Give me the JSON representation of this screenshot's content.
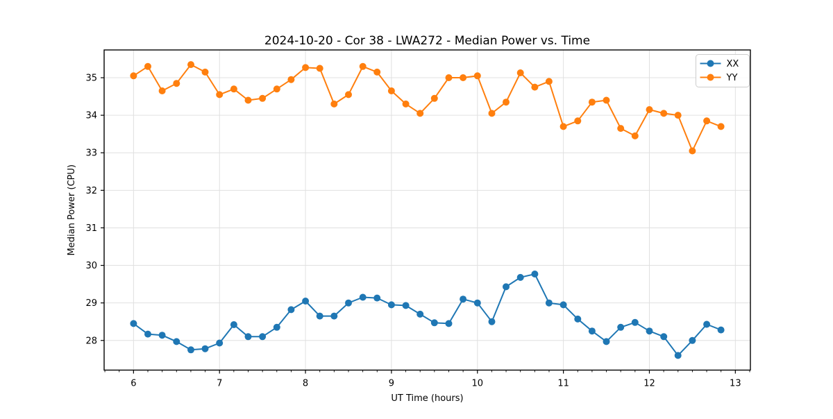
{
  "chart_data": {
    "type": "line",
    "title": "2024-10-20 - Cor 38 - LWA272 - Median Power vs. Time",
    "xlabel": "UT Time (hours)",
    "ylabel": "Median Power (CPU)",
    "xlim": [
      5.658,
      13.175
    ],
    "ylim": [
      27.21,
      35.74
    ],
    "xticks": [
      6,
      7,
      8,
      9,
      10,
      11,
      12,
      13
    ],
    "yticks": [
      28,
      29,
      30,
      31,
      32,
      33,
      34,
      35
    ],
    "minor_ticks_x_per_interval": 6,
    "grid": true,
    "legend": {
      "position": "upper right"
    },
    "x": [
      6.0,
      6.167,
      6.333,
      6.5,
      6.667,
      6.833,
      7.0,
      7.167,
      7.333,
      7.5,
      7.667,
      7.833,
      8.0,
      8.167,
      8.333,
      8.5,
      8.667,
      8.833,
      9.0,
      9.167,
      9.333,
      9.5,
      9.667,
      9.833,
      10.0,
      10.167,
      10.333,
      10.5,
      10.667,
      10.833,
      11.0,
      11.167,
      11.333,
      11.5,
      11.667,
      11.833,
      12.0,
      12.167,
      12.333,
      12.5,
      12.667,
      12.833
    ],
    "series": [
      {
        "name": "XX",
        "color": "#1f77b4",
        "values": [
          28.45,
          28.17,
          28.14,
          27.97,
          27.75,
          27.78,
          27.93,
          28.42,
          28.1,
          28.1,
          28.35,
          28.82,
          29.05,
          28.65,
          28.65,
          29.0,
          29.15,
          29.13,
          28.95,
          28.93,
          28.7,
          28.47,
          28.45,
          29.1,
          29.0,
          28.5,
          29.43,
          29.68,
          29.77,
          29.0,
          28.95,
          28.57,
          28.25,
          27.97,
          28.35,
          28.48,
          28.25,
          28.1,
          27.6,
          28.0,
          28.43,
          28.28
        ]
      },
      {
        "name": "YY",
        "color": "#ff7f0e",
        "values": [
          35.05,
          35.3,
          34.65,
          34.85,
          35.35,
          35.15,
          34.55,
          34.7,
          34.4,
          34.45,
          34.7,
          34.95,
          35.27,
          35.25,
          34.3,
          34.55,
          35.3,
          35.15,
          34.65,
          34.3,
          34.05,
          34.45,
          35.0,
          35.0,
          35.05,
          34.05,
          34.35,
          35.13,
          34.75,
          34.9,
          33.7,
          33.85,
          34.35,
          34.4,
          33.65,
          33.45,
          34.15,
          34.05,
          34.0,
          33.05,
          33.85,
          33.7
        ]
      }
    ],
    "style": {
      "grid_color": "#e0e0e0",
      "spine_color": "#000000",
      "legend_border_color": "#cccccc",
      "legend_bg": "#ffffff"
    }
  }
}
